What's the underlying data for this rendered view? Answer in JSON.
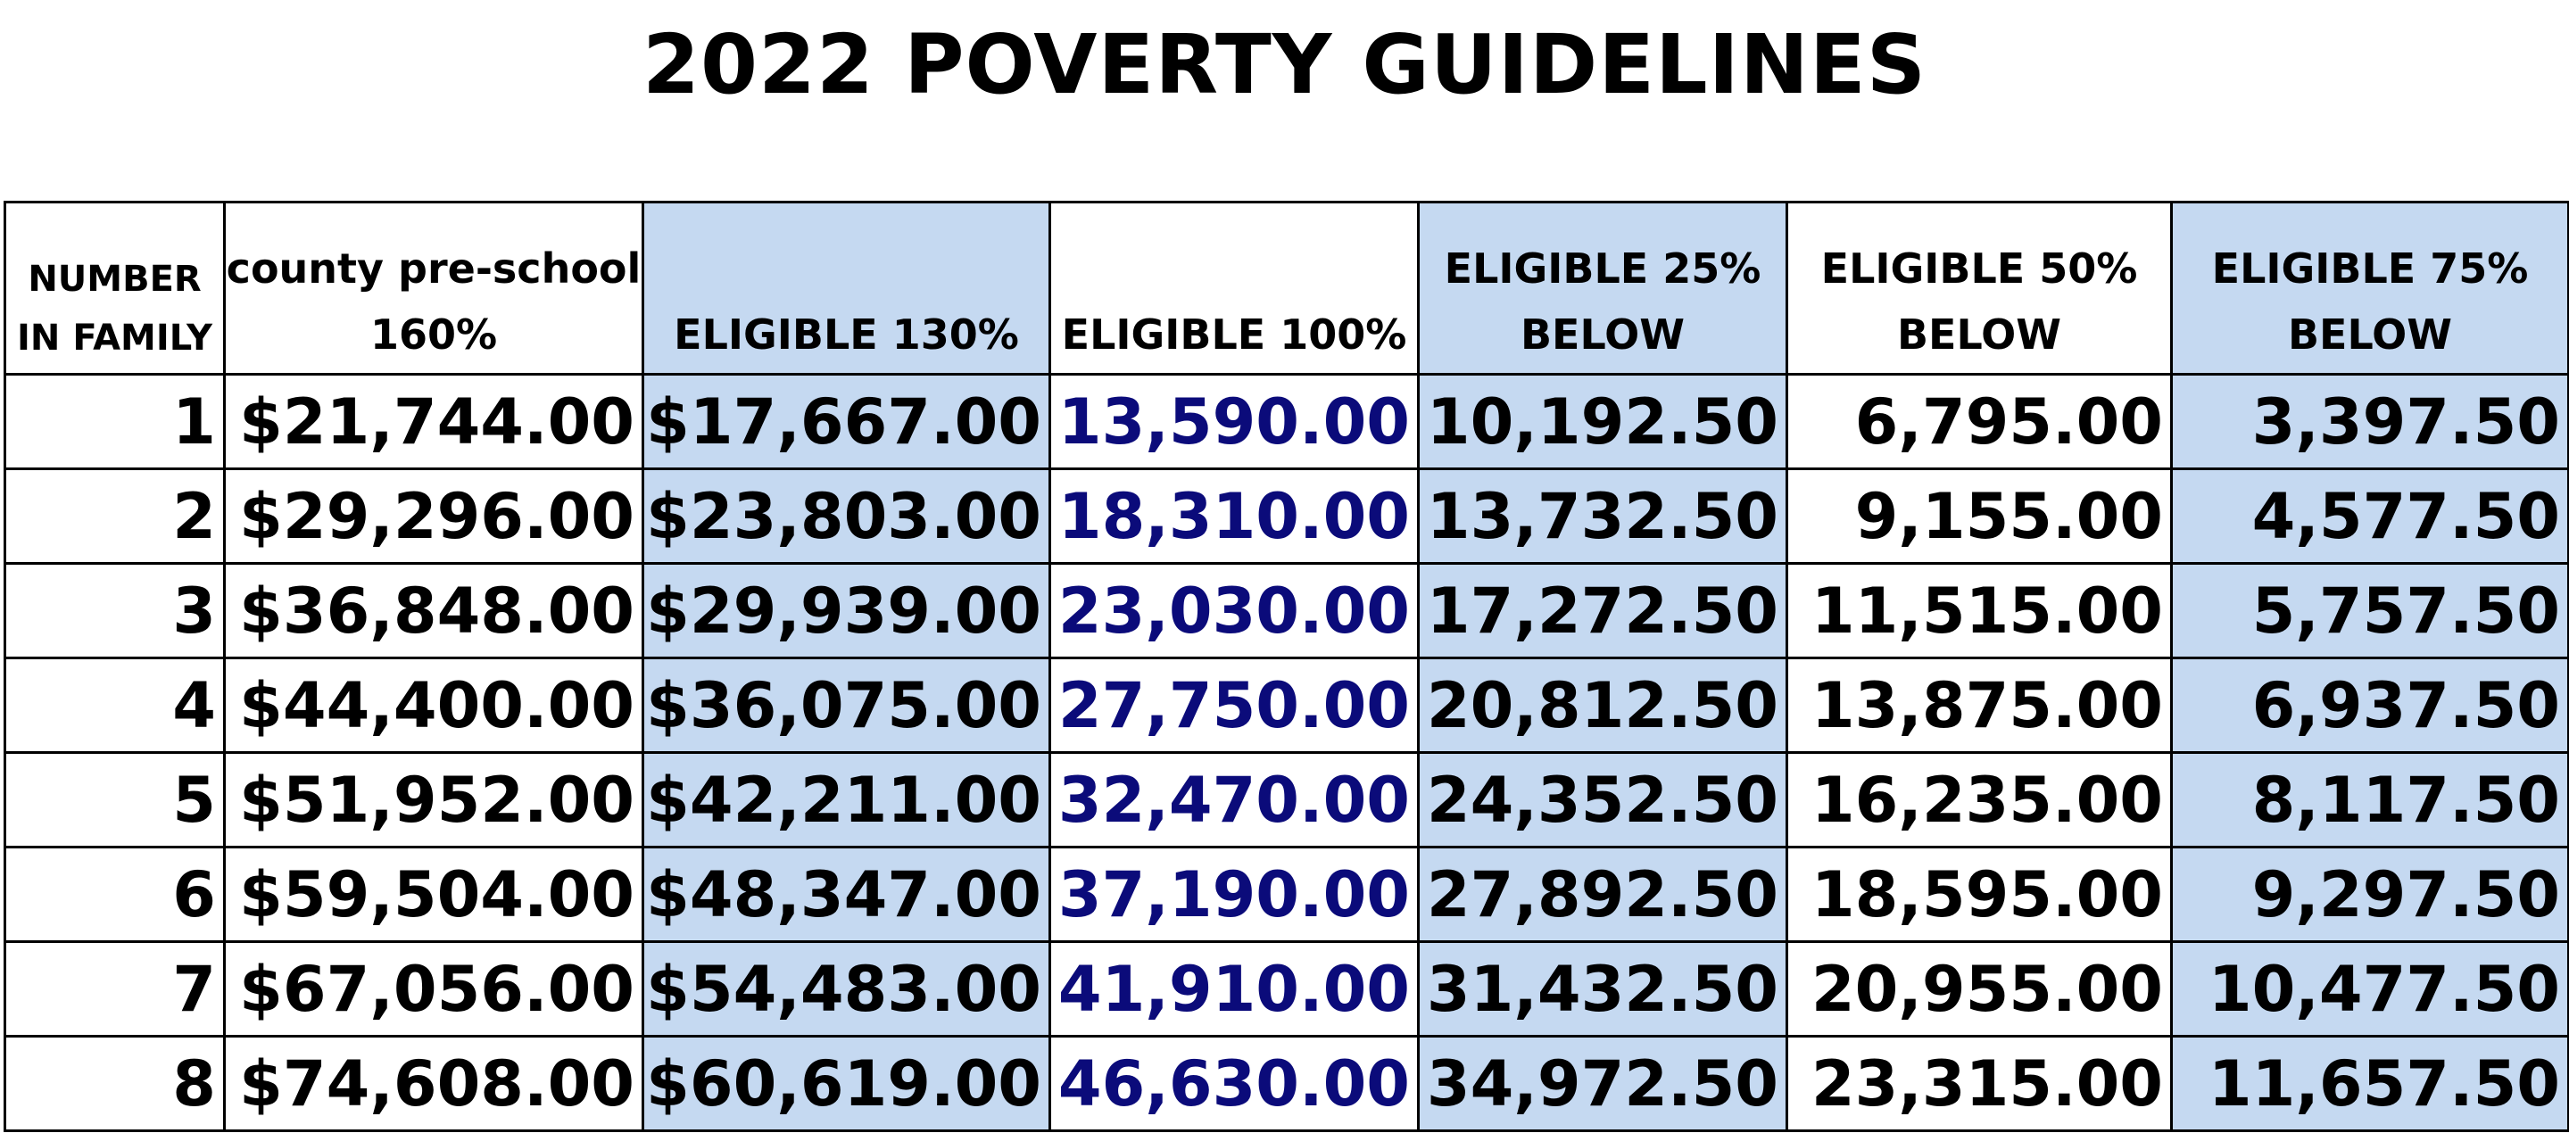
{
  "title": "2022 POVERTY GUIDELINES",
  "colors": {
    "shaded_column_bg": "#c5d9f1",
    "eligible_100_text": "#0b0b7a",
    "border": "#000000"
  },
  "headers": [
    [
      "NUMBER",
      "IN FAMILY"
    ],
    [
      "county pre-school",
      "160%"
    ],
    [
      "ELIGIBLE 130%"
    ],
    [
      "ELIGIBLE 100%"
    ],
    [
      "ELIGIBLE 25%",
      "BELOW"
    ],
    [
      "ELIGIBLE 50%",
      "BELOW"
    ],
    [
      "ELIGIBLE 75%",
      "BELOW"
    ]
  ],
  "rows": [
    [
      "1",
      "$21,744.00",
      "$17,667.00",
      "13,590.00",
      "10,192.50",
      "6,795.00",
      "3,397.50"
    ],
    [
      "2",
      "$29,296.00",
      "$23,803.00",
      "18,310.00",
      "13,732.50",
      "9,155.00",
      "4,577.50"
    ],
    [
      "3",
      "$36,848.00",
      "$29,939.00",
      "23,030.00",
      "17,272.50",
      "11,515.00",
      "5,757.50"
    ],
    [
      "4",
      "$44,400.00",
      "$36,075.00",
      "27,750.00",
      "20,812.50",
      "13,875.00",
      "6,937.50"
    ],
    [
      "5",
      "$51,952.00",
      "$42,211.00",
      "32,470.00",
      "24,352.50",
      "16,235.00",
      "8,117.50"
    ],
    [
      "6",
      "$59,504.00",
      "$48,347.00",
      "37,190.00",
      "27,892.50",
      "18,595.00",
      "9,297.50"
    ],
    [
      "7",
      "$67,056.00",
      "$54,483.00",
      "41,910.00",
      "31,432.50",
      "20,955.00",
      "10,477.50"
    ],
    [
      "8",
      "$74,608.00",
      "$60,619.00",
      "46,630.00",
      "34,972.50",
      "23,315.00",
      "11,657.50"
    ]
  ]
}
